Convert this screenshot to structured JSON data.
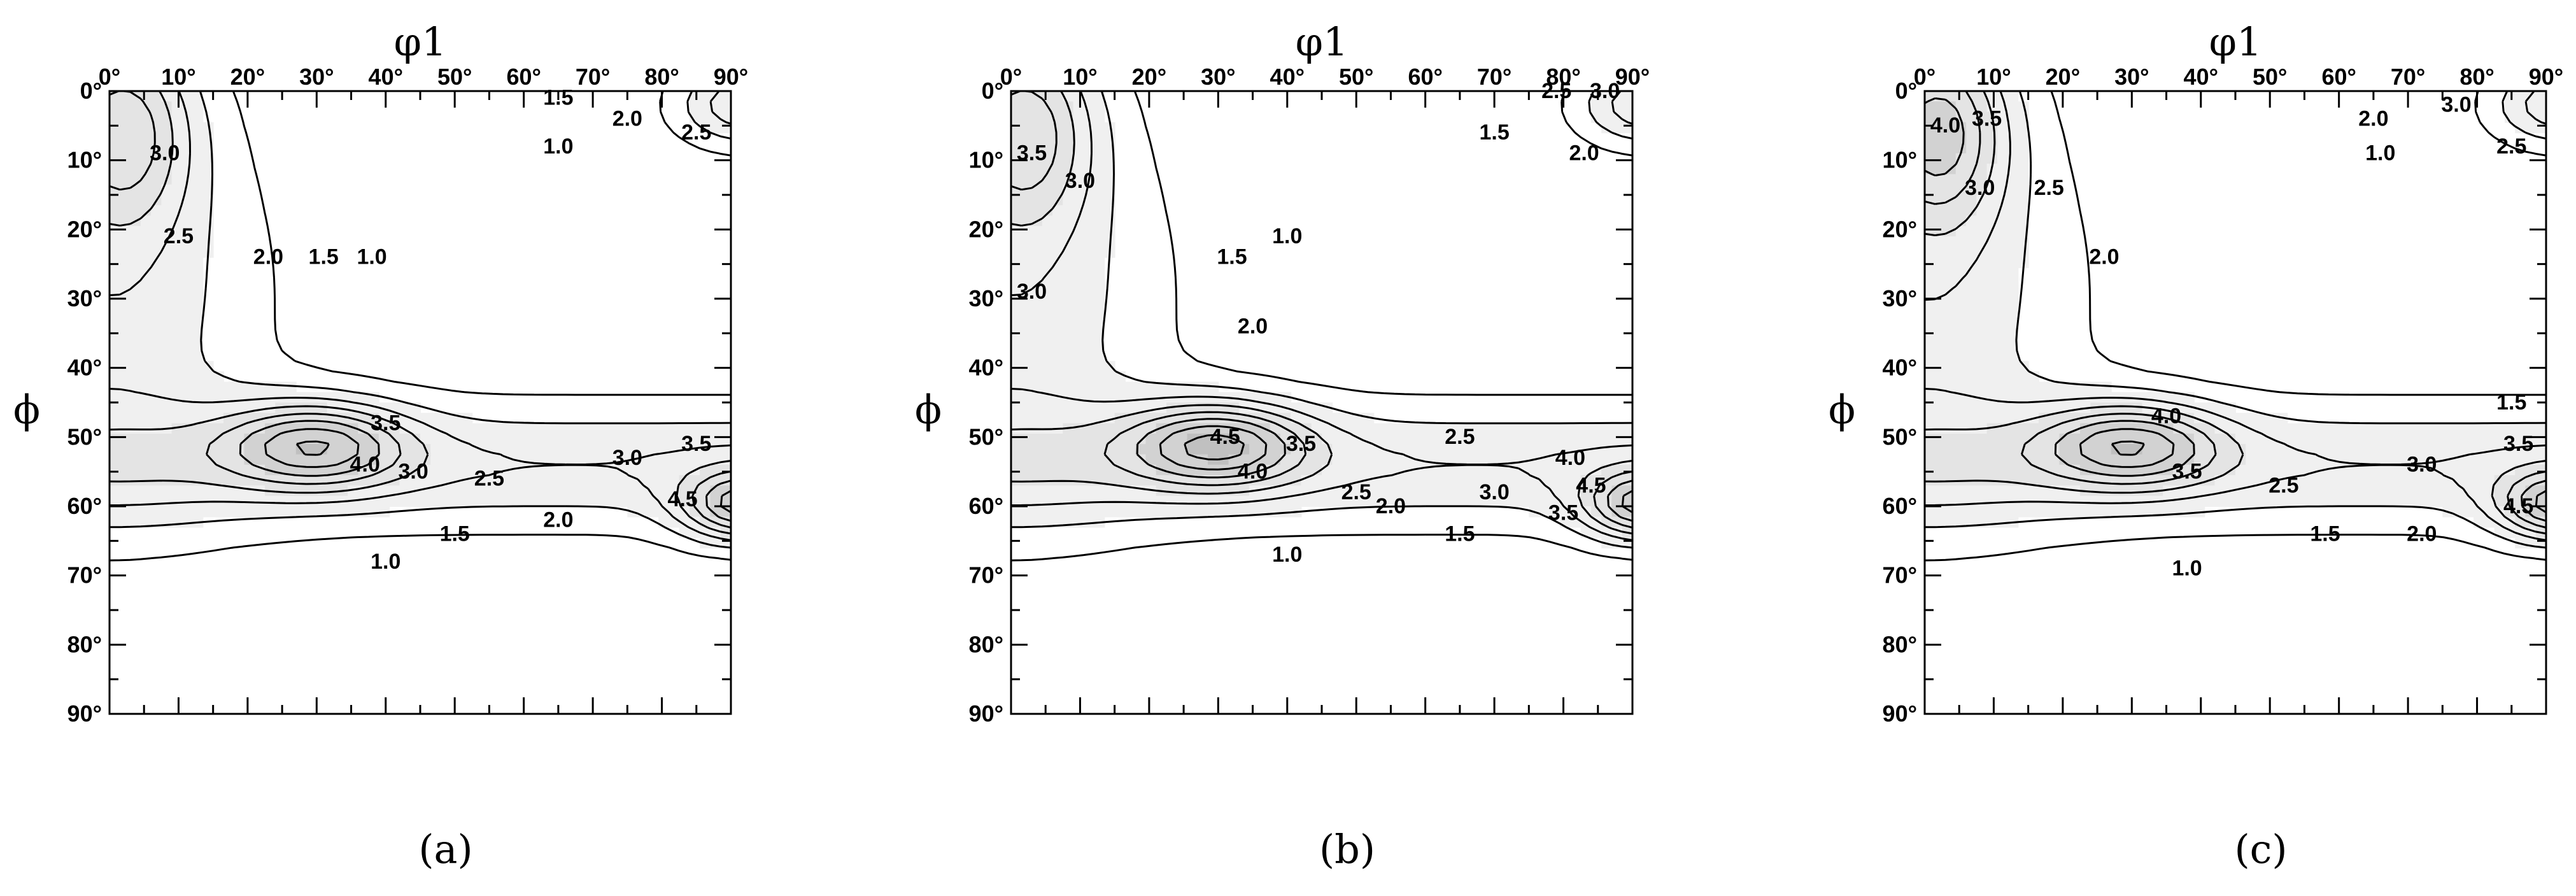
{
  "chart_data": [
    {
      "type": "contour",
      "panel_label": "(a)",
      "xlabel": "φ1",
      "ylabel": "ϕ",
      "xlim": [
        0,
        90
      ],
      "ylim": [
        0,
        90
      ],
      "x_ticks": [
        "0°",
        "10°",
        "20°",
        "30°",
        "40°",
        "50°",
        "60°",
        "70°",
        "80°",
        "90°"
      ],
      "y_ticks": [
        "0°",
        "10°",
        "20°",
        "30°",
        "40°",
        "50°",
        "60°",
        "70°",
        "80°",
        "90°"
      ],
      "contour_levels": [
        1.0,
        1.5,
        2.0,
        2.5,
        3.0,
        3.5,
        4.0,
        4.5
      ],
      "contour_labels": [
        {
          "text": "3.0",
          "x": 8,
          "y": 10
        },
        {
          "text": "2.5",
          "x": 10,
          "y": 22
        },
        {
          "text": "2.0",
          "x": 23,
          "y": 25
        },
        {
          "text": "1.5",
          "x": 31,
          "y": 25
        },
        {
          "text": "1.0",
          "x": 38,
          "y": 25
        },
        {
          "text": "1.5",
          "x": 65,
          "y": 2
        },
        {
          "text": "2.0",
          "x": 75,
          "y": 5
        },
        {
          "text": "2.5",
          "x": 85,
          "y": 7
        },
        {
          "text": "1.0",
          "x": 65,
          "y": 9
        },
        {
          "text": "3.5",
          "x": 40,
          "y": 49
        },
        {
          "text": "4.0",
          "x": 37,
          "y": 55
        },
        {
          "text": "3.0",
          "x": 44,
          "y": 56
        },
        {
          "text": "2.5",
          "x": 55,
          "y": 57
        },
        {
          "text": "3.0",
          "x": 75,
          "y": 54
        },
        {
          "text": "3.5",
          "x": 85,
          "y": 52
        },
        {
          "text": "4.5",
          "x": 83,
          "y": 60
        },
        {
          "text": "2.0",
          "x": 65,
          "y": 63
        },
        {
          "text": "1.5",
          "x": 50,
          "y": 65
        },
        {
          "text": "1.0",
          "x": 40,
          "y": 69
        }
      ],
      "maxima": [
        {
          "phi1": 30,
          "phi": 51,
          "level": 4.0
        },
        {
          "phi1": 90,
          "phi": 60,
          "level": 4.5
        }
      ]
    },
    {
      "type": "contour",
      "panel_label": "(b)",
      "xlabel": "φ1",
      "ylabel": "ϕ",
      "xlim": [
        0,
        90
      ],
      "ylim": [
        0,
        90
      ],
      "x_ticks": [
        "0°",
        "10°",
        "20°",
        "30°",
        "40°",
        "50°",
        "60°",
        "70°",
        "80°",
        "90°"
      ],
      "y_ticks": [
        "0°",
        "10°",
        "20°",
        "30°",
        "40°",
        "50°",
        "60°",
        "70°",
        "80°",
        "90°"
      ],
      "contour_levels": [
        1.0,
        1.5,
        2.0,
        2.5,
        3.0,
        3.5,
        4.0,
        4.5
      ],
      "contour_labels": [
        {
          "text": "3.5",
          "x": 3,
          "y": 10
        },
        {
          "text": "3.0",
          "x": 10,
          "y": 14
        },
        {
          "text": "3.0",
          "x": 3,
          "y": 30
        },
        {
          "text": "1.5",
          "x": 32,
          "y": 25
        },
        {
          "text": "1.0",
          "x": 40,
          "y": 22
        },
        {
          "text": "2.0",
          "x": 35,
          "y": 35
        },
        {
          "text": "2.5",
          "x": 79,
          "y": 1
        },
        {
          "text": "3.0",
          "x": 86,
          "y": 1
        },
        {
          "text": "1.5",
          "x": 70,
          "y": 7
        },
        {
          "text": "2.0",
          "x": 83,
          "y": 10
        },
        {
          "text": "4.5",
          "x": 31,
          "y": 51
        },
        {
          "text": "3.5",
          "x": 42,
          "y": 52
        },
        {
          "text": "4.0",
          "x": 35,
          "y": 56
        },
        {
          "text": "2.5",
          "x": 65,
          "y": 51
        },
        {
          "text": "2.5",
          "x": 50,
          "y": 59
        },
        {
          "text": "2.0",
          "x": 55,
          "y": 61
        },
        {
          "text": "1.5",
          "x": 65,
          "y": 65
        },
        {
          "text": "1.0",
          "x": 40,
          "y": 68
        },
        {
          "text": "3.0",
          "x": 70,
          "y": 59
        },
        {
          "text": "4.0",
          "x": 81,
          "y": 54
        },
        {
          "text": "4.5",
          "x": 84,
          "y": 58
        },
        {
          "text": "3.5",
          "x": 80,
          "y": 62
        }
      ],
      "maxima": [
        {
          "phi1": 31,
          "phi": 52,
          "level": 4.5
        },
        {
          "phi1": 90,
          "phi": 60,
          "level": 4.5
        }
      ]
    },
    {
      "type": "contour",
      "panel_label": "(c)",
      "xlabel": "φ1",
      "ylabel": "ϕ",
      "xlim": [
        0,
        90
      ],
      "ylim": [
        0,
        90
      ],
      "x_ticks": [
        "0°",
        "10°",
        "20°",
        "30°",
        "40°",
        "50°",
        "60°",
        "70°",
        "80°",
        "90°"
      ],
      "y_ticks": [
        "0°",
        "10°",
        "20°",
        "30°",
        "40°",
        "50°",
        "60°",
        "70°",
        "80°",
        "90°"
      ],
      "contour_levels": [
        1.0,
        1.5,
        2.0,
        2.5,
        3.0,
        3.5,
        4.0,
        4.5
      ],
      "contour_labels": [
        {
          "text": "4.0",
          "x": 3,
          "y": 6
        },
        {
          "text": "3.5",
          "x": 9,
          "y": 5
        },
        {
          "text": "3.0",
          "x": 8,
          "y": 15
        },
        {
          "text": "2.5",
          "x": 18,
          "y": 15
        },
        {
          "text": "2.0",
          "x": 26,
          "y": 25
        },
        {
          "text": "2.0",
          "x": 65,
          "y": 5
        },
        {
          "text": "3.0",
          "x": 77,
          "y": 3
        },
        {
          "text": "2.5",
          "x": 85,
          "y": 9
        },
        {
          "text": "1.0",
          "x": 66,
          "y": 10
        },
        {
          "text": "1.5",
          "x": 85,
          "y": 46
        },
        {
          "text": "4.0",
          "x": 35,
          "y": 48
        },
        {
          "text": "3.5",
          "x": 38,
          "y": 56
        },
        {
          "text": "3.0",
          "x": 72,
          "y": 55
        },
        {
          "text": "3.5",
          "x": 86,
          "y": 52
        },
        {
          "text": "4.5",
          "x": 86,
          "y": 61
        },
        {
          "text": "2.5",
          "x": 52,
          "y": 58
        },
        {
          "text": "2.0",
          "x": 72,
          "y": 65
        },
        {
          "text": "1.5",
          "x": 58,
          "y": 65
        },
        {
          "text": "1.0",
          "x": 38,
          "y": 70
        }
      ],
      "maxima": [
        {
          "phi1": 30,
          "phi": 50,
          "level": 4.0
        },
        {
          "phi1": 90,
          "phi": 60,
          "level": 4.5
        }
      ]
    }
  ]
}
